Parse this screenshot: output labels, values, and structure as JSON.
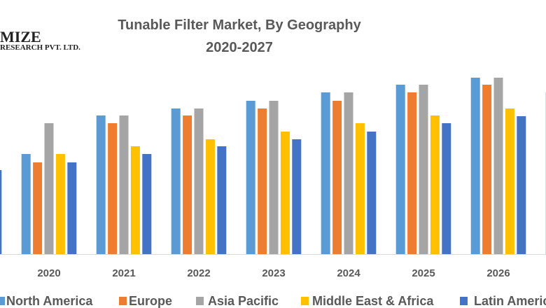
{
  "logo": {
    "line1": "MIZE",
    "line2": "RESEARCH PVT. LTD."
  },
  "chart_data": {
    "type": "bar",
    "title": "Tunable Filter Market, By Geography",
    "subtitle": "2020-2027",
    "xlabel": "",
    "ylabel": "",
    "grid": false,
    "legend": "bottom",
    "categories": [
      "",
      "2020",
      "2021",
      "2022",
      "2023",
      "2024",
      "2025",
      "2026",
      ""
    ],
    "series": [
      {
        "name": "North America",
        "color": "#5B9BD5",
        "values": [
          null,
          143,
          198,
          208,
          219,
          231,
          242,
          252,
          231
        ]
      },
      {
        "name": "Europe",
        "color": "#ED7D31",
        "values": [
          null,
          131,
          187,
          198,
          208,
          219,
          231,
          242,
          null
        ]
      },
      {
        "name": "Asia Pacific",
        "color": "#A5A5A5",
        "values": [
          null,
          187,
          198,
          208,
          219,
          231,
          242,
          252,
          null
        ]
      },
      {
        "name": "Middle East & Africa",
        "color": "#FFC000",
        "values": [
          null,
          143,
          154,
          164,
          175,
          187,
          198,
          208,
          null
        ]
      },
      {
        "name": "Latin America",
        "color": "#4472C4",
        "values": [
          120,
          131,
          143,
          154,
          164,
          175,
          187,
          197,
          null
        ]
      }
    ]
  }
}
